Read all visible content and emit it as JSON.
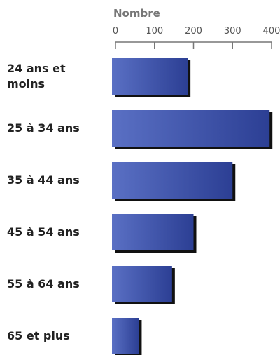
{
  "chart_data": {
    "type": "bar",
    "orientation": "horizontal",
    "x_label": "Nombre",
    "categories": [
      "24 ans et moins",
      "25 à 34 ans",
      "35 à 44 ans",
      "45 à 54 ans",
      "55 à 64 ans",
      "65 et plus"
    ],
    "values": [
      185,
      395,
      300,
      200,
      145,
      60
    ],
    "color": "#3a52a8",
    "xlim": [
      0,
      400
    ],
    "xticks": [
      0,
      100,
      200,
      300,
      400
    ]
  }
}
